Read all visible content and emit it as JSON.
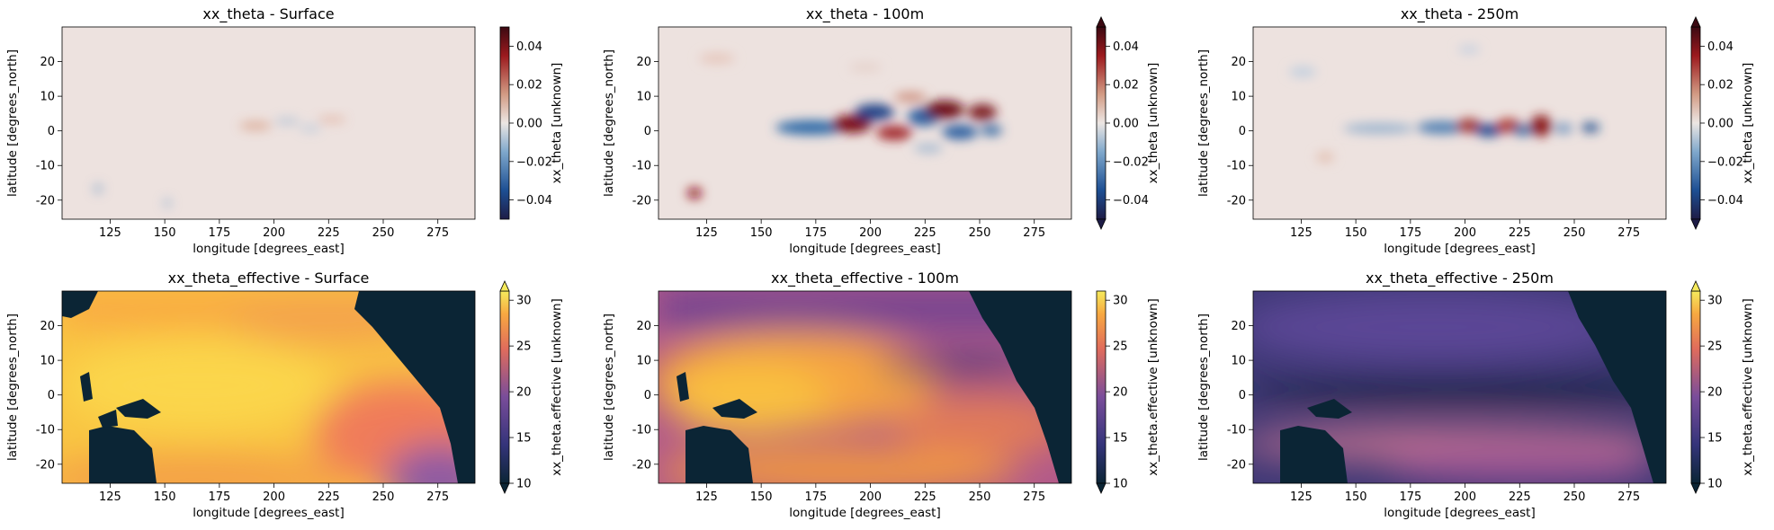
{
  "chart_data": [
    {
      "type": "heatmap",
      "title": "xx_theta - Surface",
      "xlabel": "longitude [degrees_east]",
      "ylabel": "latitude [degrees_north]",
      "xticks": [
        125,
        150,
        175,
        200,
        225,
        250,
        275
      ],
      "yticks": [
        -20,
        -10,
        0,
        10,
        20
      ],
      "xlim": [
        103,
        292
      ],
      "ylim": [
        -25.5,
        30
      ],
      "colorbar": {
        "label": "xx_theta [unknown]",
        "ticks": [
          -0.04,
          -0.02,
          0.0,
          0.02,
          0.04
        ],
        "tick_labels": [
          "−0.04",
          "−0.02",
          "0.00",
          "0.02",
          "0.04"
        ],
        "range": [
          -0.05,
          0.05
        ],
        "cmap": "diverging blue-white-red",
        "extend": "neither"
      },
      "grid": false
    },
    {
      "type": "heatmap",
      "title": "xx_theta - 100m",
      "xlabel": "longitude [degrees_east]",
      "ylabel": "latitude [degrees_north]",
      "xticks": [
        125,
        150,
        175,
        200,
        225,
        250,
        275
      ],
      "yticks": [
        -20,
        -10,
        0,
        10,
        20
      ],
      "xlim": [
        103,
        292
      ],
      "ylim": [
        -25.5,
        30
      ],
      "colorbar": {
        "label": "xx_theta [unknown]",
        "ticks": [
          -0.04,
          -0.02,
          0.0,
          0.02,
          0.04
        ],
        "tick_labels": [
          "−0.04",
          "−0.02",
          "0.00",
          "0.02",
          "0.04"
        ],
        "range": [
          -0.05,
          0.05
        ],
        "cmap": "diverging blue-white-red",
        "extend": "both"
      },
      "grid": false
    },
    {
      "type": "heatmap",
      "title": "xx_theta - 250m",
      "xlabel": "longitude [degrees_east]",
      "ylabel": "latitude [degrees_north]",
      "xticks": [
        125,
        150,
        175,
        200,
        225,
        250,
        275
      ],
      "yticks": [
        -20,
        -10,
        0,
        10,
        20
      ],
      "xlim": [
        103,
        292
      ],
      "ylim": [
        -25.5,
        30
      ],
      "colorbar": {
        "label": "xx_theta [unknown]",
        "ticks": [
          -0.04,
          -0.02,
          0.0,
          0.02,
          0.04
        ],
        "tick_labels": [
          "−0.04",
          "−0.02",
          "0.00",
          "0.02",
          "0.04"
        ],
        "range": [
          -0.05,
          0.05
        ],
        "cmap": "diverging blue-white-red",
        "extend": "both"
      },
      "grid": false
    },
    {
      "type": "heatmap",
      "title": "xx_theta_effective - Surface",
      "xlabel": "longitude [degrees_east]",
      "ylabel": "latitude [degrees_north]",
      "xticks": [
        125,
        150,
        175,
        200,
        225,
        250,
        275
      ],
      "yticks": [
        -20,
        -10,
        0,
        10,
        20
      ],
      "xlim": [
        103,
        292
      ],
      "ylim": [
        -25.5,
        30
      ],
      "colorbar": {
        "label": "xx_theta.effective [unknown]",
        "ticks": [
          10,
          15,
          20,
          25,
          30
        ],
        "tick_labels": [
          "10",
          "15",
          "20",
          "25",
          "30"
        ],
        "range": [
          10,
          31
        ],
        "cmap": "thermal (navy-purple-orange-yellow)",
        "extend": "both"
      },
      "grid": false
    },
    {
      "type": "heatmap",
      "title": "xx_theta_effective - 100m",
      "xlabel": "longitude [degrees_east]",
      "ylabel": "latitude [degrees_north]",
      "xticks": [
        125,
        150,
        175,
        200,
        225,
        250,
        275
      ],
      "yticks": [
        -20,
        -10,
        0,
        10,
        20
      ],
      "xlim": [
        103,
        292
      ],
      "ylim": [
        -25.5,
        30
      ],
      "colorbar": {
        "label": "xx_theta.effective [unknown]",
        "ticks": [
          10,
          15,
          20,
          25,
          30
        ],
        "tick_labels": [
          "10",
          "15",
          "20",
          "25",
          "30"
        ],
        "range": [
          10,
          31
        ],
        "cmap": "thermal (navy-purple-orange-yellow)",
        "extend": "min"
      },
      "grid": false
    },
    {
      "type": "heatmap",
      "title": "xx_theta_effective - 250m",
      "xlabel": "longitude [degrees_east]",
      "ylabel": "latitude [degrees_north]",
      "xticks": [
        125,
        150,
        175,
        200,
        225,
        250,
        275
      ],
      "yticks": [
        -20,
        -10,
        0,
        10,
        20
      ],
      "xlim": [
        103,
        292
      ],
      "ylim": [
        -25.5,
        30
      ],
      "colorbar": {
        "label": "xx_theta.effective [unknown]",
        "ticks": [
          10,
          15,
          20,
          25,
          30
        ],
        "tick_labels": [
          "10",
          "15",
          "20",
          "25",
          "30"
        ],
        "range": [
          10,
          31
        ],
        "cmap": "thermal (navy-purple-orange-yellow)",
        "extend": "both"
      },
      "grid": false
    }
  ],
  "colors": {
    "land": "#0b2535",
    "neutral": "#ede2df",
    "diverging_neg": "#1a3f8c",
    "diverging_pos": "#7a0a12",
    "thermal_low": "#0b2535",
    "thermal_high": "#f7e55a"
  }
}
